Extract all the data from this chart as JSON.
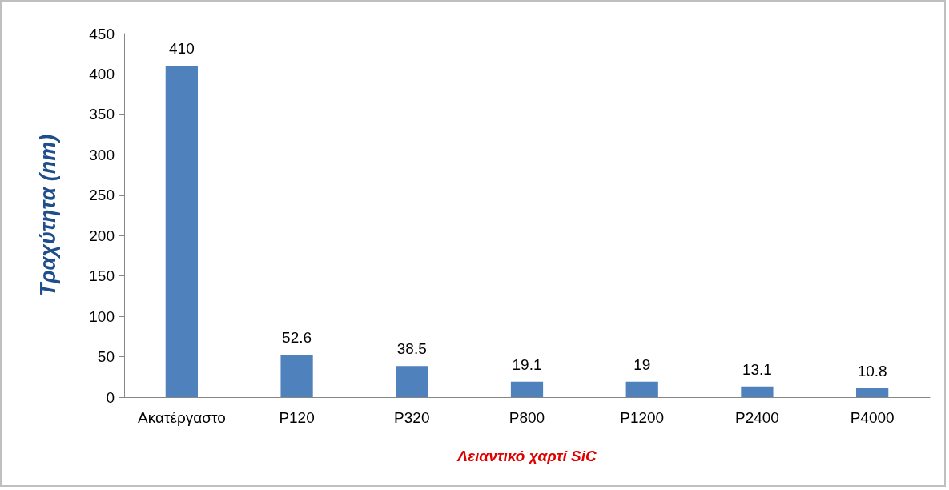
{
  "chart_data": {
    "type": "bar",
    "xlabel": "Λειαντικό χαρτί SiC",
    "ylabel": "Τραχύτητα (nm)",
    "categories": [
      "Ακατέργαστο",
      "P120",
      "P320",
      "P800",
      "P1200",
      "P2400",
      "P4000"
    ],
    "values": [
      410,
      52.6,
      38.5,
      19.1,
      19,
      13.1,
      10.8
    ],
    "color": "#4f81bd",
    "ylim": [
      0,
      450
    ],
    "yticks": [
      0,
      50,
      100,
      150,
      200,
      250,
      300,
      350,
      400,
      450
    ],
    "grid": false,
    "data_labels": true
  }
}
